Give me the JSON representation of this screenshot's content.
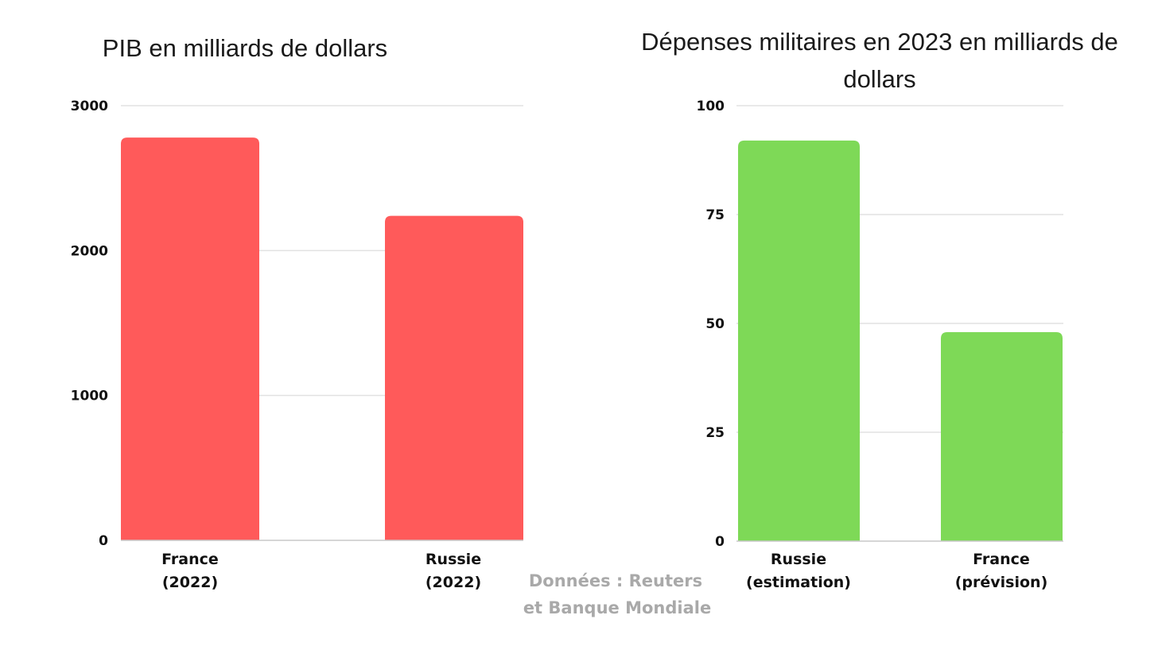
{
  "chart_data": [
    {
      "type": "bar",
      "title": "PIB en milliards de dollars",
      "categories": [
        [
          "France",
          "(2022)"
        ],
        [
          "Russie",
          "(2022)"
        ]
      ],
      "values": [
        2780,
        2240
      ],
      "ylim": [
        0,
        3000
      ],
      "yticks": [
        "0",
        "1000",
        "2000",
        "3000"
      ],
      "ytick_values": [
        0,
        1000,
        2000,
        3000
      ],
      "color": "#ff5a5a",
      "grid": true,
      "xlabel": "",
      "ylabel": ""
    },
    {
      "type": "bar",
      "title": [
        "Dépenses militaires en 2023 en milliards de",
        "dollars"
      ],
      "categories": [
        [
          "Russie",
          "(estimation)"
        ],
        [
          "France",
          "(prévision)"
        ]
      ],
      "values": [
        92,
        48
      ],
      "ylim": [
        0,
        100
      ],
      "yticks": [
        "0",
        "25",
        "50",
        "75",
        "100"
      ],
      "ytick_values": [
        0,
        25,
        50,
        75,
        100
      ],
      "color": "#7ed957",
      "grid": true,
      "xlabel": "",
      "ylabel": ""
    }
  ],
  "source": [
    "Données : Reuters",
    "et Banque Mondiale"
  ]
}
